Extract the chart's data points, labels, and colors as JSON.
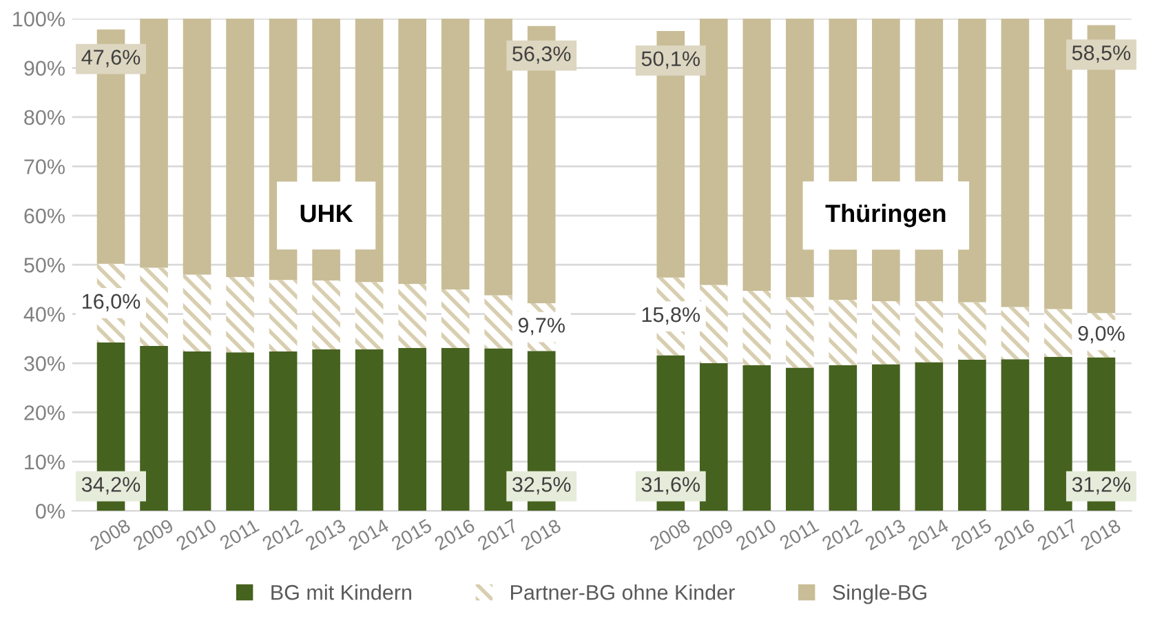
{
  "chart_data": {
    "type": "bar",
    "stacked": true,
    "categories": [
      "2008",
      "2009",
      "2010",
      "2011",
      "2012",
      "2013",
      "2014",
      "2015",
      "2016",
      "2017",
      "2018",
      null,
      null,
      "2008",
      "2009",
      "2010",
      "2011",
      "2012",
      "2013",
      "2014",
      "2015",
      "2016",
      "2017",
      "2018"
    ],
    "series": [
      {
        "name": "BG mit Kindern",
        "color": "#46621f",
        "values": [
          34.2,
          33.5,
          32.4,
          32.2,
          32.4,
          32.8,
          32.8,
          33.1,
          33.1,
          33.0,
          32.5,
          null,
          null,
          31.6,
          30.0,
          29.6,
          29.1,
          29.6,
          29.8,
          30.2,
          30.7,
          30.8,
          31.3,
          31.2
        ],
        "value_labels": [
          "34,2%",
          null,
          null,
          null,
          null,
          null,
          null,
          null,
          null,
          null,
          "32,5%",
          null,
          null,
          "31,6%",
          null,
          null,
          null,
          null,
          null,
          null,
          null,
          null,
          null,
          "31,2%"
        ]
      },
      {
        "name": "Partner-BG ohne Kinder",
        "color": "#d8ceb0",
        "values": [
          16.0,
          15.9,
          15.6,
          15.3,
          14.5,
          14.0,
          13.7,
          13.0,
          11.9,
          10.8,
          9.7,
          null,
          null,
          15.8,
          15.9,
          15.1,
          14.3,
          13.3,
          12.8,
          12.4,
          11.7,
          10.6,
          9.7,
          9.0
        ],
        "value_labels": [
          "16,0%",
          null,
          null,
          null,
          null,
          null,
          null,
          null,
          null,
          null,
          "9,7%",
          null,
          null,
          "15,8%",
          null,
          null,
          null,
          null,
          null,
          null,
          null,
          null,
          null,
          "9,0%"
        ]
      },
      {
        "name": "Single-BG",
        "color": "#c8bd96",
        "values": [
          47.6,
          50.6,
          52.0,
          52.5,
          53.1,
          53.2,
          53.5,
          53.9,
          55.0,
          56.2,
          56.3,
          null,
          null,
          50.1,
          54.1,
          55.3,
          56.6,
          57.1,
          57.4,
          57.4,
          57.6,
          58.6,
          59.0,
          58.5
        ],
        "value_labels": [
          "47,6%",
          null,
          null,
          null,
          null,
          null,
          null,
          null,
          null,
          null,
          "56,3%",
          null,
          null,
          "50,1%",
          null,
          null,
          null,
          null,
          null,
          null,
          null,
          null,
          null,
          "58,5%"
        ]
      }
    ],
    "annotations": [
      "UHK",
      "Thüringen"
    ],
    "ylim": [
      0,
      100
    ],
    "yticks": [
      {
        "value": 0,
        "label": "0%"
      },
      {
        "value": 10,
        "label": "10%"
      },
      {
        "value": 20,
        "label": "20%"
      },
      {
        "value": 30,
        "label": "30%"
      },
      {
        "value": 40,
        "label": "40%"
      },
      {
        "value": 50,
        "label": "50%"
      },
      {
        "value": 60,
        "label": "60%"
      },
      {
        "value": 70,
        "label": "70%"
      },
      {
        "value": 80,
        "label": "80%"
      },
      {
        "value": 90,
        "label": "90%"
      },
      {
        "value": 100,
        "label": "100%"
      }
    ],
    "grid": "y",
    "legend": "bottom"
  }
}
